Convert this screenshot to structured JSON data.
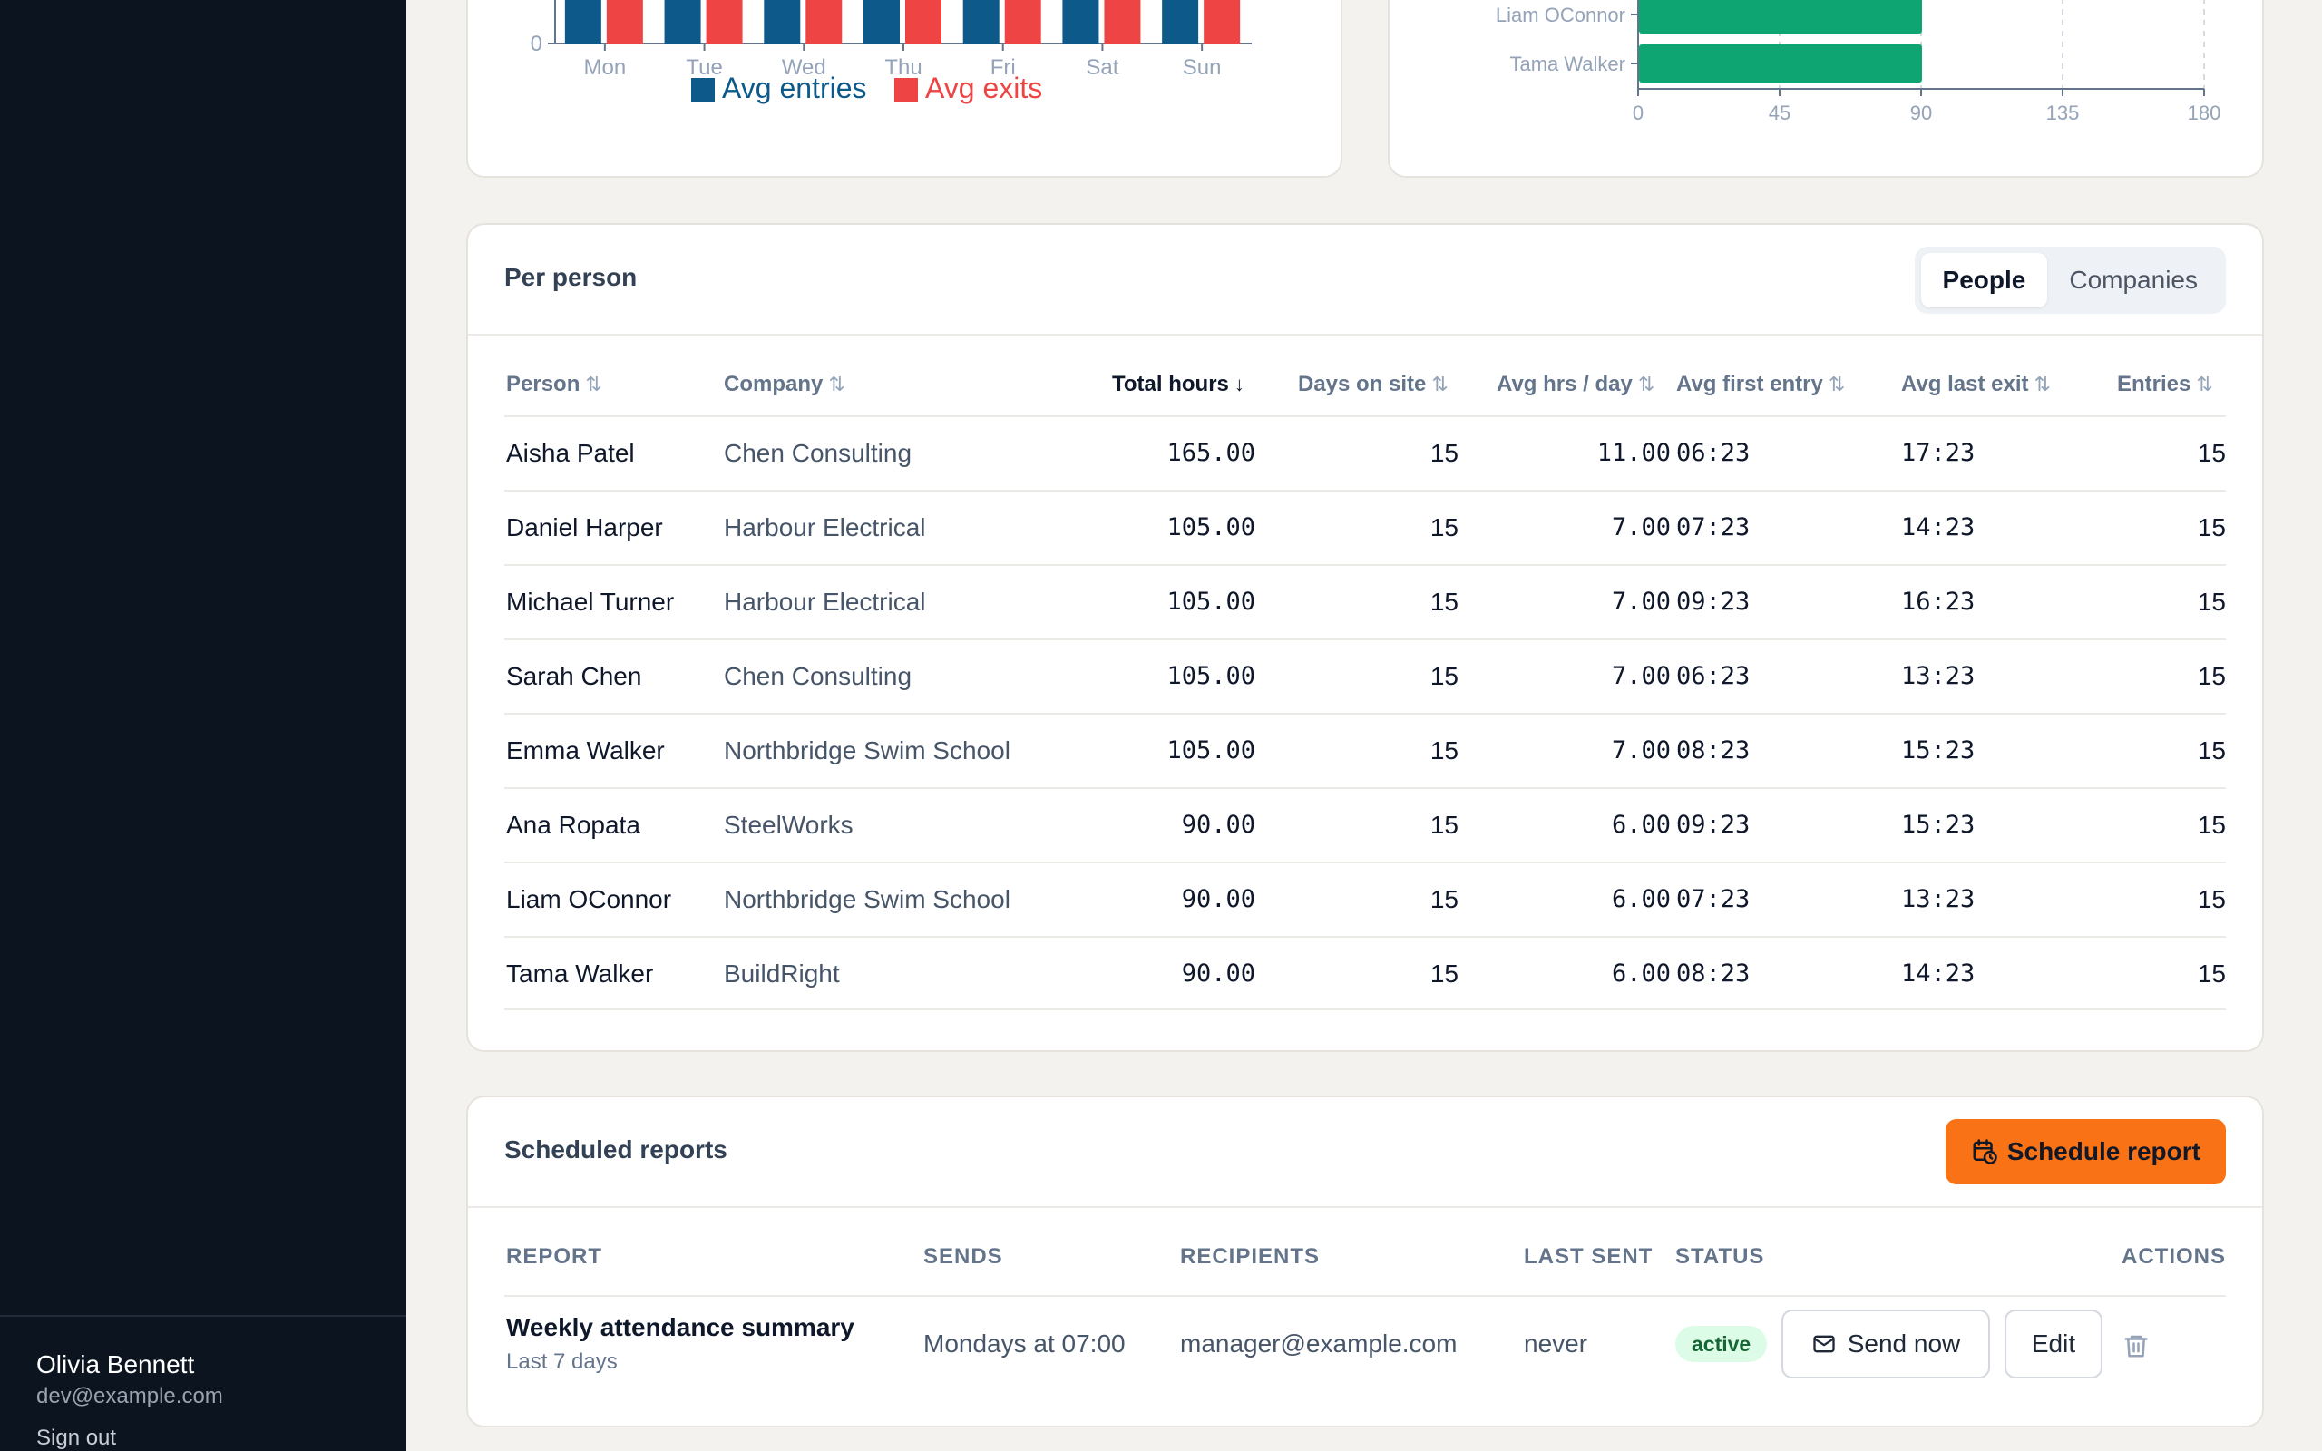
{
  "sidebar": {
    "user_name": "Olivia Bennett",
    "user_email": "dev@example.com",
    "sign_out": "Sign out"
  },
  "colors": {
    "entries": "#0d5a8a",
    "exits": "#ef4444",
    "hbar": "#0ea572",
    "accent": "#f97316"
  },
  "chart_data": [
    {
      "type": "bar",
      "categories": [
        "Mon",
        "Tue",
        "Wed",
        "Thu",
        "Fri",
        "Sat",
        "Sun"
      ],
      "y_ticks": [
        "0"
      ],
      "series": [
        {
          "name": "Avg entries"
        },
        {
          "name": "Avg exits"
        }
      ],
      "legend": "bottom"
    },
    {
      "type": "bar",
      "orientation": "horizontal",
      "categories": [
        "Liam OConnor",
        "Tama Walker"
      ],
      "values": [
        90,
        90
      ],
      "x_ticks": [
        "0",
        "45",
        "90",
        "135",
        "180"
      ],
      "xlim": [
        0,
        180
      ]
    }
  ],
  "people_card": {
    "title": "Per person",
    "tabs": [
      "People",
      "Companies"
    ],
    "active_tab": "People",
    "columns": [
      "Person",
      "Company",
      "Total hours",
      "Days on site",
      "Avg hrs / day",
      "Avg first entry",
      "Avg last exit",
      "Entries"
    ],
    "rows": [
      {
        "person": "Aisha Patel",
        "company": "Chen Consulting",
        "total_hours": "165.00",
        "days": "15",
        "avg_hrs": "11.00",
        "first_entry": "06:23",
        "last_exit": "17:23",
        "entries": "15"
      },
      {
        "person": "Daniel Harper",
        "company": "Harbour Electrical",
        "total_hours": "105.00",
        "days": "15",
        "avg_hrs": "7.00",
        "first_entry": "07:23",
        "last_exit": "14:23",
        "entries": "15"
      },
      {
        "person": "Michael Turner",
        "company": "Harbour Electrical",
        "total_hours": "105.00",
        "days": "15",
        "avg_hrs": "7.00",
        "first_entry": "09:23",
        "last_exit": "16:23",
        "entries": "15"
      },
      {
        "person": "Sarah Chen",
        "company": "Chen Consulting",
        "total_hours": "105.00",
        "days": "15",
        "avg_hrs": "7.00",
        "first_entry": "06:23",
        "last_exit": "13:23",
        "entries": "15"
      },
      {
        "person": "Emma Walker",
        "company": "Northbridge Swim School",
        "total_hours": "105.00",
        "days": "15",
        "avg_hrs": "7.00",
        "first_entry": "08:23",
        "last_exit": "15:23",
        "entries": "15"
      },
      {
        "person": "Ana Ropata",
        "company": "SteelWorks",
        "total_hours": "90.00",
        "days": "15",
        "avg_hrs": "6.00",
        "first_entry": "09:23",
        "last_exit": "15:23",
        "entries": "15"
      },
      {
        "person": "Liam OConnor",
        "company": "Northbridge Swim School",
        "total_hours": "90.00",
        "days": "15",
        "avg_hrs": "6.00",
        "first_entry": "07:23",
        "last_exit": "13:23",
        "entries": "15"
      },
      {
        "person": "Tama Walker",
        "company": "BuildRight",
        "total_hours": "90.00",
        "days": "15",
        "avg_hrs": "6.00",
        "first_entry": "08:23",
        "last_exit": "14:23",
        "entries": "15"
      }
    ]
  },
  "reports_card": {
    "title": "Scheduled reports",
    "schedule_button": "Schedule report",
    "columns": [
      "REPORT",
      "SENDS",
      "RECIPIENTS",
      "LAST SENT",
      "STATUS",
      "ACTIONS"
    ],
    "rows": [
      {
        "name": "Weekly attendance summary",
        "range": "Last 7 days",
        "sends": "Mondays at 07:00",
        "recipients": "manager@example.com",
        "last_sent": "never",
        "status": "active",
        "send_now": "Send now",
        "edit": "Edit"
      }
    ]
  }
}
